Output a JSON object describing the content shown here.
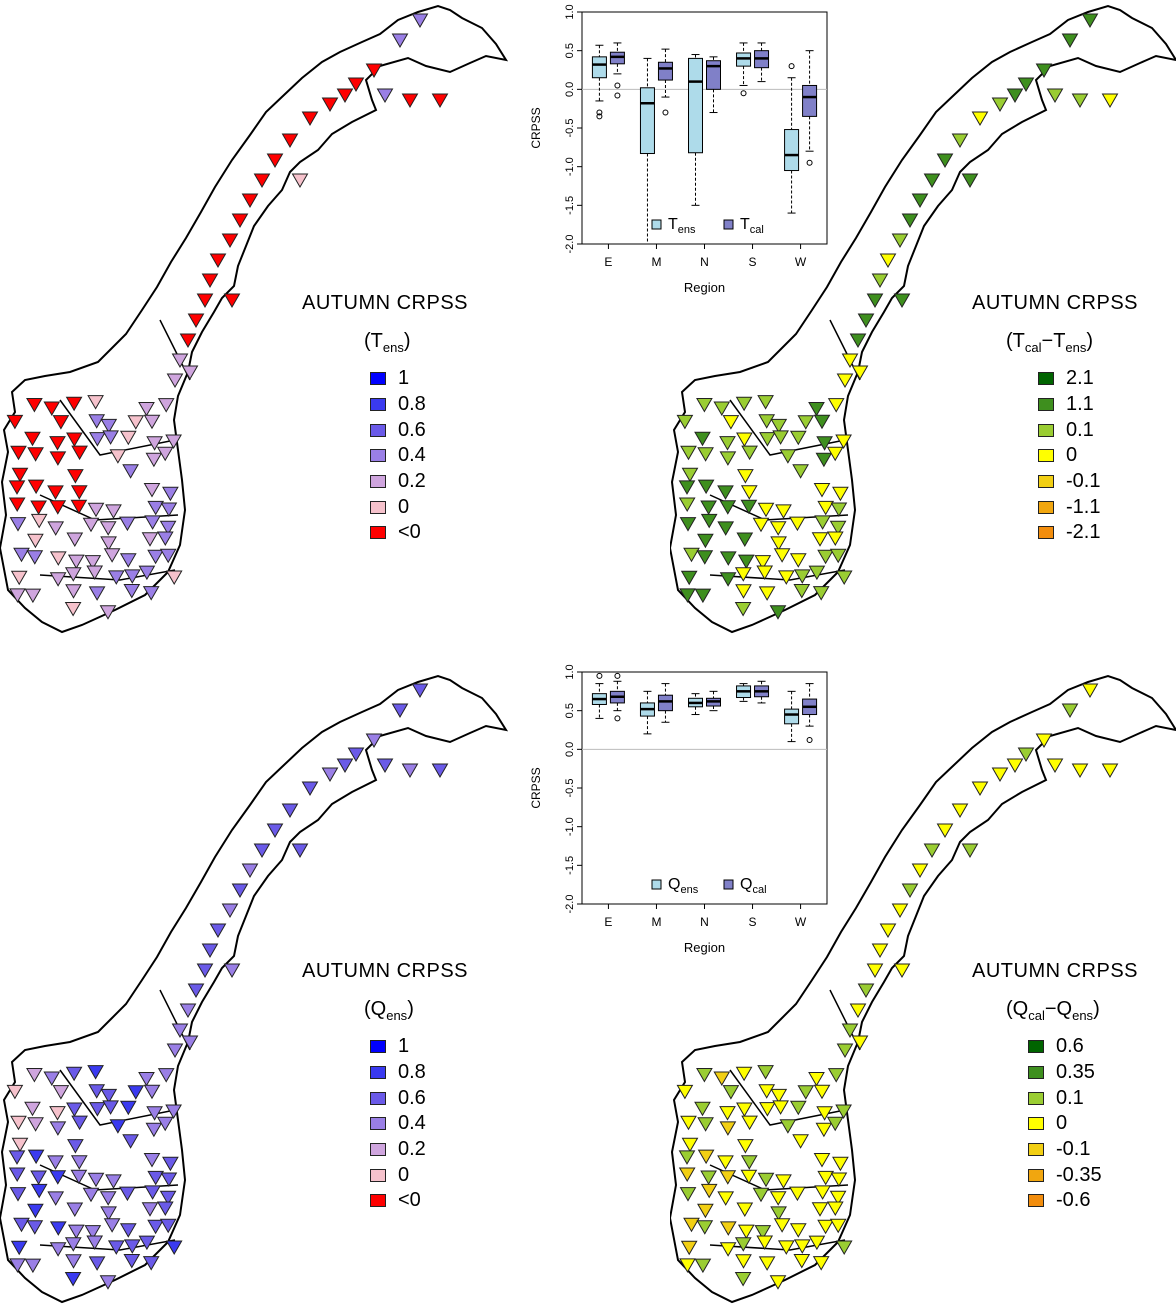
{
  "legend_colors": {
    "blue_scale": [
      "#0000ff",
      "#3a3af0",
      "#6a5ae8",
      "#9a7fe6",
      "#cfa5de",
      "#f6c2cc",
      "#ff0000"
    ],
    "green_scale": [
      "#006400",
      "#3e8f1e",
      "#9acd32",
      "#ffff00",
      "#f2cf13",
      "#f1a60f",
      "#f28d0d"
    ]
  },
  "panels": {
    "t_ens": {
      "title": "AUTUMN CRPSS",
      "sub_base": "(T",
      "sub_index": "ens",
      "sub_close": ")",
      "legend": [
        "1",
        "0.8",
        "0.6",
        "0.4",
        "0.2",
        "0",
        "<0"
      ]
    },
    "t_diff": {
      "title": "AUTUMN CRPSS",
      "sub_a": "(T",
      "sub_a_index": "cal",
      "sub_mid": "−T",
      "sub_b_index": "ens",
      "sub_close": ")",
      "legend": [
        "2.1",
        "1.1",
        "0.1",
        "0",
        "-0.1",
        "-1.1",
        "-2.1"
      ]
    },
    "q_ens": {
      "title": "AUTUMN CRPSS",
      "sub_base": "(Q",
      "sub_index": "ens",
      "sub_close": ")",
      "legend": [
        "1",
        "0.8",
        "0.6",
        "0.4",
        "0.2",
        "0",
        "<0"
      ]
    },
    "q_diff": {
      "title": "AUTUMN CRPSS",
      "sub_a": "(Q",
      "sub_a_index": "cal",
      "sub_mid": "−Q",
      "sub_b_index": "ens",
      "sub_close": ")",
      "legend": [
        "0.6",
        "0.35",
        "0.1",
        "0",
        "-0.1",
        "-0.35",
        "-0.6"
      ]
    }
  },
  "chart_data": [
    {
      "type": "box",
      "ylabel": "CRPSS",
      "xlabel": "Region",
      "categories": [
        "E",
        "M",
        "N",
        "S",
        "W"
      ],
      "ylim": [
        -2.0,
        1.0
      ],
      "yticks": [
        "1.0",
        "0.5",
        "0.0",
        "-0.5",
        "-1.0",
        "-1.5",
        "-2.0"
      ],
      "legend_placement": "bottom-center",
      "series": [
        {
          "name": "T_ens",
          "legend_base": "T",
          "legend_index": "ens",
          "color": "#aedbea",
          "stats": [
            [
              -0.15,
              0.15,
              0.32,
              0.42,
              0.57
            ],
            [
              -2.0,
              -0.83,
              -0.18,
              0.02,
              0.4
            ],
            [
              -1.5,
              -0.82,
              0.1,
              0.4,
              0.45
            ],
            [
              0.05,
              0.3,
              0.4,
              0.47,
              0.6
            ],
            [
              -1.6,
              -1.05,
              -0.85,
              -0.52,
              0.15
            ]
          ],
          "outliers": [
            [
              -0.3,
              -0.35
            ],
            [],
            [],
            [
              -0.05
            ],
            [
              0.3
            ]
          ]
        },
        {
          "name": "T_cal",
          "legend_base": "T",
          "legend_index": "cal",
          "color": "#8080c8",
          "stats": [
            [
              0.2,
              0.33,
              0.42,
              0.48,
              0.6
            ],
            [
              -0.1,
              0.12,
              0.27,
              0.35,
              0.52
            ],
            [
              -0.3,
              0.0,
              0.3,
              0.37,
              0.42
            ],
            [
              0.1,
              0.28,
              0.4,
              0.5,
              0.6
            ],
            [
              -0.8,
              -0.35,
              -0.1,
              0.05,
              0.5
            ]
          ],
          "outliers": [
            [
              -0.08,
              0.05
            ],
            [
              -0.3
            ],
            [],
            [],
            [
              -0.95
            ]
          ]
        }
      ]
    },
    {
      "type": "box",
      "ylabel": "CRPSS",
      "xlabel": "Region",
      "categories": [
        "E",
        "M",
        "N",
        "S",
        "W"
      ],
      "ylim": [
        -2.0,
        1.0
      ],
      "yticks": [
        "1.0",
        "0.5",
        "0.0",
        "-0.5",
        "-1.0",
        "-1.5",
        "-2.0"
      ],
      "legend_placement": "bottom-center",
      "series": [
        {
          "name": "Q_ens",
          "legend_base": "Q",
          "legend_index": "ens",
          "color": "#aedbea",
          "stats": [
            [
              0.4,
              0.58,
              0.65,
              0.72,
              0.85
            ],
            [
              0.2,
              0.43,
              0.52,
              0.6,
              0.75
            ],
            [
              0.45,
              0.55,
              0.6,
              0.66,
              0.72
            ],
            [
              0.62,
              0.67,
              0.75,
              0.82,
              0.85
            ],
            [
              0.1,
              0.33,
              0.45,
              0.52,
              0.75
            ]
          ],
          "outliers": [
            [
              0.95
            ],
            [],
            [],
            [],
            []
          ]
        },
        {
          "name": "Q_cal",
          "legend_base": "Q",
          "legend_index": "cal",
          "color": "#8080c8",
          "stats": [
            [
              0.5,
              0.6,
              0.68,
              0.75,
              0.88
            ],
            [
              0.35,
              0.5,
              0.62,
              0.7,
              0.85
            ],
            [
              0.5,
              0.56,
              0.62,
              0.66,
              0.75
            ],
            [
              0.6,
              0.68,
              0.75,
              0.82,
              0.88
            ],
            [
              0.3,
              0.45,
              0.55,
              0.65,
              0.85
            ]
          ],
          "outliers": [
            [
              0.95,
              0.4
            ],
            [],
            [],
            [],
            [
              0.12
            ]
          ]
        }
      ]
    }
  ]
}
